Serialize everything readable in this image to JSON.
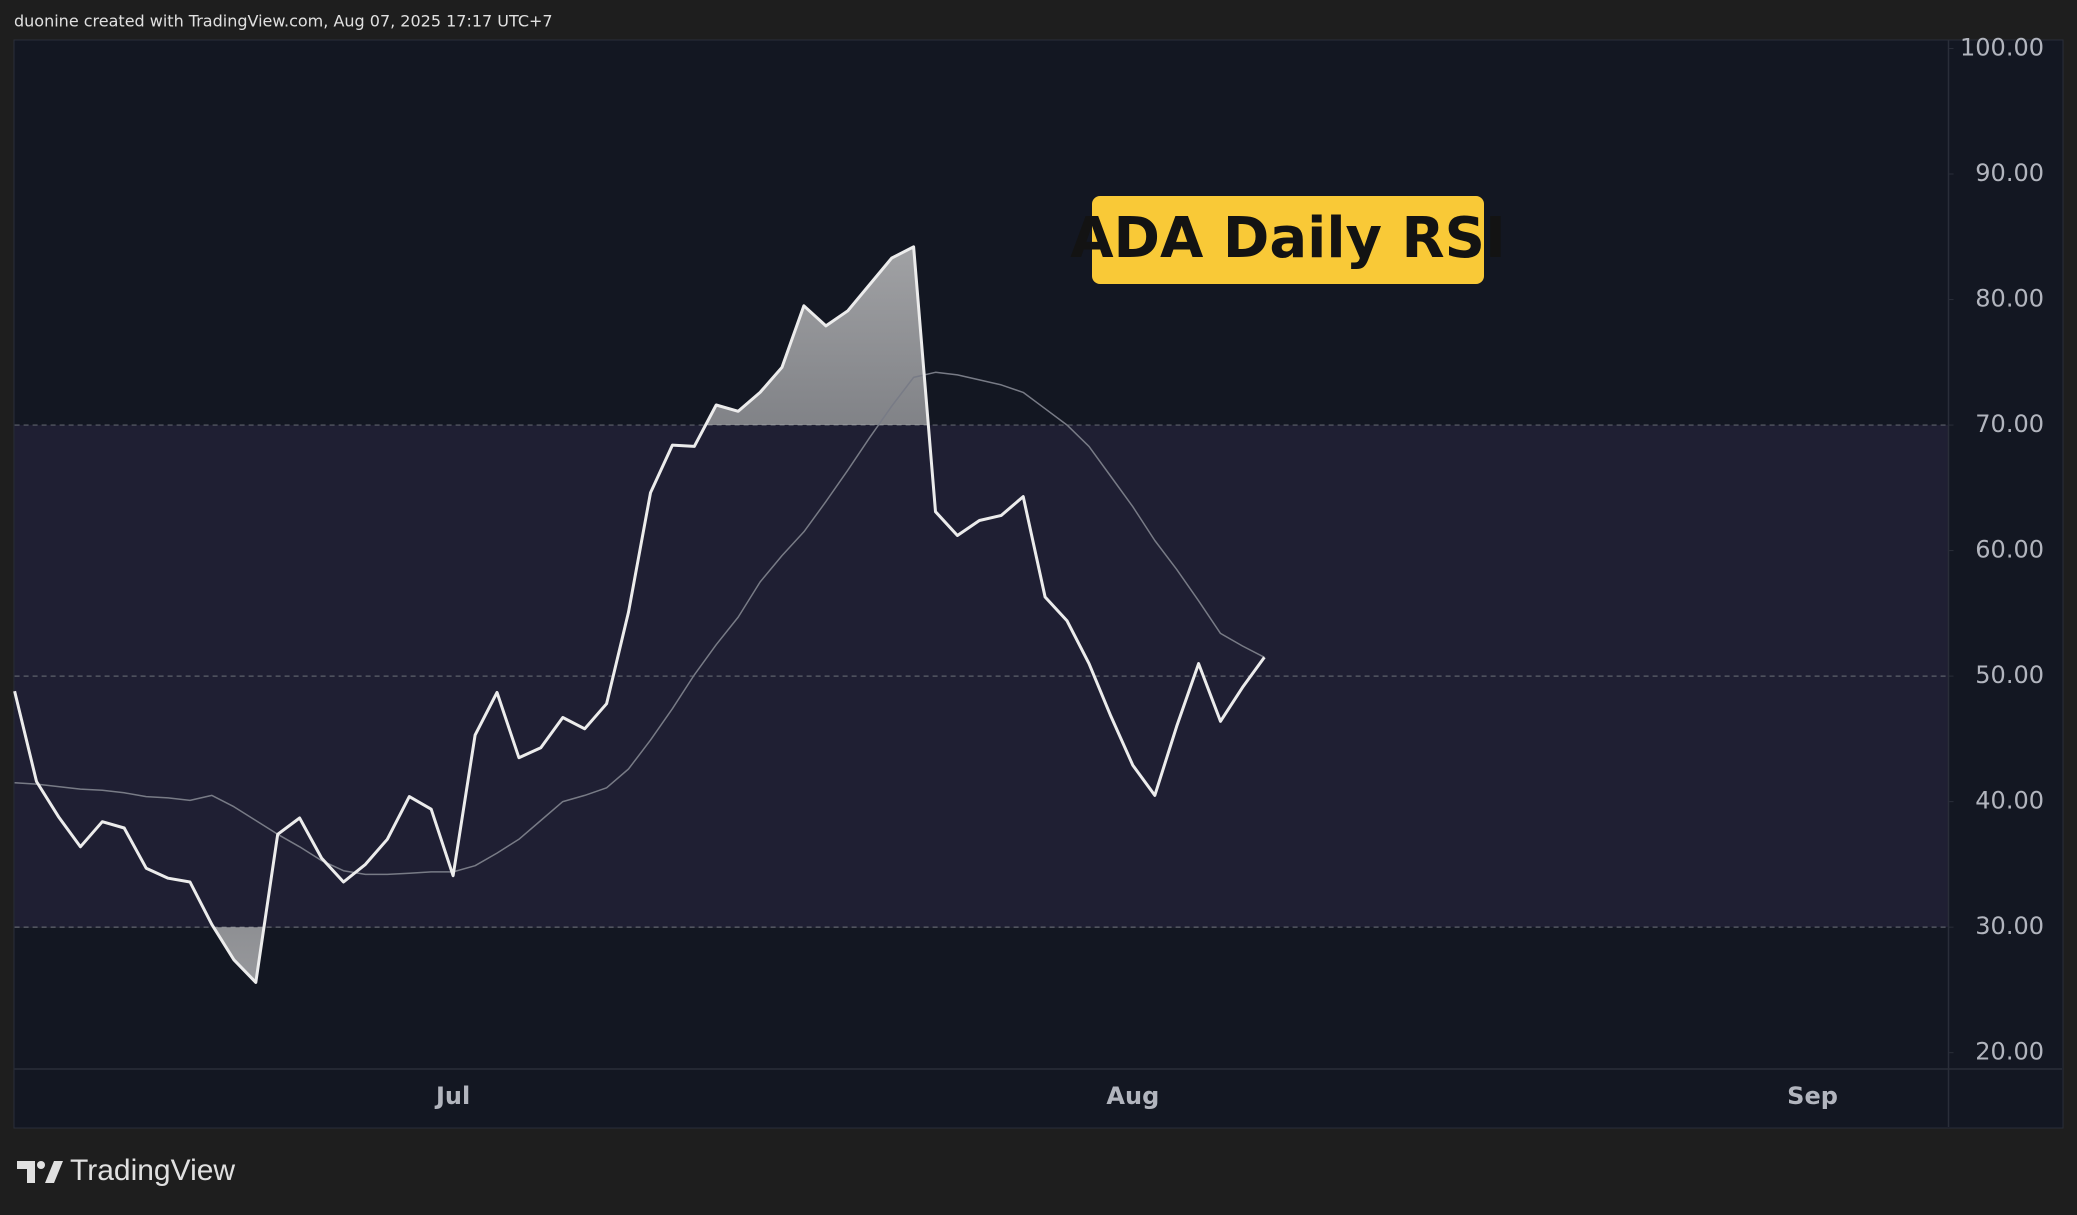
{
  "attribution": "duonine created with TradingView.com, Aug 07, 2025 17:17 UTC+7",
  "brand": "TradingView",
  "chart_data": {
    "type": "line",
    "title": "ADA Daily RSI",
    "categories": [
      null,
      null,
      null,
      null,
      null,
      null,
      null,
      null,
      null,
      null,
      null,
      null,
      null,
      null,
      null,
      null,
      null,
      null,
      null,
      null,
      "Jul",
      null,
      null,
      null,
      null,
      null,
      null,
      null,
      null,
      null,
      null,
      null,
      null,
      null,
      null,
      null,
      null,
      null,
      null,
      null,
      null,
      null,
      null,
      null,
      null,
      null,
      null,
      null,
      null,
      null,
      null,
      "Aug",
      null,
      null,
      null,
      null,
      null,
      null,
      null,
      null,
      null,
      null,
      null,
      null,
      null,
      null,
      null,
      null,
      null,
      null,
      null,
      null,
      null,
      null,
      null,
      null,
      null,
      null,
      null,
      null,
      null,
      null,
      "Sep",
      null,
      null,
      null,
      null,
      null,
      null
    ],
    "series": [
      {
        "color": "#ececec",
        "values": [
          48.8,
          41.6,
          38.8,
          36.4,
          38.4,
          37.9,
          34.7,
          33.9,
          33.6,
          30.2,
          27.4,
          25.6,
          37.4,
          38.7,
          35.5,
          33.6,
          35.0,
          37.0,
          40.4,
          39.4,
          34.1,
          45.3,
          48.7,
          43.5,
          44.3,
          46.7,
          45.8,
          47.8,
          55.1,
          64.6,
          68.4,
          68.3,
          71.6,
          71.1,
          72.6,
          74.6,
          79.5,
          77.9,
          79.1,
          81.2,
          83.3,
          84.2,
          63.1,
          61.2,
          62.4,
          62.8,
          64.3,
          56.3,
          54.4,
          51.0,
          46.8,
          42.9,
          40.5,
          46.0,
          51.0,
          46.4,
          49.1,
          51.5,
          null,
          null,
          null,
          null,
          null,
          null,
          null,
          null,
          null,
          null,
          null,
          null,
          null,
          null,
          null,
          null,
          null,
          null,
          null,
          null,
          null,
          null,
          null,
          null,
          null,
          null,
          null,
          null,
          null,
          null,
          null
        ]
      },
      {
        "color": "#787b86",
        "values": [
          41.5,
          41.4,
          41.2,
          41.0,
          40.9,
          40.7,
          40.4,
          40.3,
          40.1,
          40.5,
          39.6,
          38.5,
          37.4,
          36.4,
          35.3,
          34.5,
          34.2,
          34.2,
          34.3,
          34.4,
          34.4,
          34.9,
          35.9,
          37.0,
          38.5,
          40.0,
          40.5,
          41.1,
          42.6,
          44.9,
          47.4,
          50.1,
          52.5,
          54.7,
          57.5,
          59.6,
          61.5,
          63.9,
          66.4,
          69.0,
          71.5,
          73.8,
          74.2,
          74.0,
          73.6,
          73.2,
          72.6,
          71.3,
          70.0,
          68.3,
          65.9,
          63.5,
          60.8,
          58.5,
          56.0,
          53.4,
          52.4,
          51.5,
          null,
          null,
          null,
          null,
          null,
          null,
          null,
          null,
          null,
          null,
          null,
          null,
          null,
          null,
          null,
          null,
          null,
          null,
          null,
          null,
          null,
          null,
          null,
          null,
          null,
          null,
          null,
          null,
          null,
          null,
          null
        ]
      }
    ],
    "ylim": [
      18.7,
      100.7
    ],
    "yticks": [
      {
        "value": 20,
        "label": "20.00"
      },
      {
        "value": 30,
        "label": "30.00"
      },
      {
        "value": 40,
        "label": "40.00"
      },
      {
        "value": 50,
        "label": "50.00"
      },
      {
        "value": 60,
        "label": "60.00"
      },
      {
        "value": 70,
        "label": "70.00"
      },
      {
        "value": 80,
        "label": "80.00"
      },
      {
        "value": 90,
        "label": "90.00"
      },
      {
        "value": 100,
        "label": "100.00"
      }
    ],
    "band": [
      30,
      70
    ],
    "band_color": "#1f1f33",
    "midline": 50,
    "grid": false
  }
}
